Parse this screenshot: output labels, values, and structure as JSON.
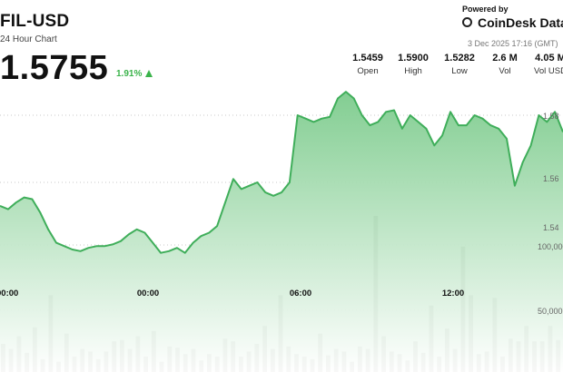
{
  "header": {
    "pair": "FIL-USD",
    "subtitle": "24 Hour Chart",
    "price": "1.5755",
    "change": "1.91%",
    "change_color": "#3ab34a"
  },
  "brand": {
    "powered_by": "Powered by",
    "name": "CoinDesk Data",
    "timestamp": "3 Dec 2025 17:16 (GMT)"
  },
  "stats": [
    {
      "value": "1.5459",
      "label": "Open"
    },
    {
      "value": "1.5900",
      "label": "High"
    },
    {
      "value": "1.5282",
      "label": "Low"
    },
    {
      "value": "2.6 M",
      "label": "Vol"
    },
    {
      "value": "4.05 M",
      "label": "Vol USD"
    }
  ],
  "colors": {
    "line": "#3fae5a",
    "area_top": "#7ccb8c",
    "area_bottom": "#ffffff",
    "volume_bar": "#6b6b64",
    "grid": "#c8c8c8"
  },
  "chart_data": {
    "type": "area",
    "x_tick_labels": [
      "00:00",
      "06:00",
      "12:00"
    ],
    "y_tick_labels": [
      "1.58",
      "1.56",
      "1.54"
    ],
    "volume_tick_labels": [
      "100,000",
      "50,000"
    ],
    "grid": true,
    "price_series": [
      1.553,
      1.552,
      1.554,
      1.5555,
      1.555,
      1.551,
      1.546,
      1.542,
      1.541,
      1.54,
      1.5395,
      1.5405,
      1.541,
      1.541,
      1.5415,
      1.5425,
      1.5445,
      1.546,
      1.545,
      1.542,
      1.539,
      1.5395,
      1.5405,
      1.539,
      1.542,
      1.544,
      1.545,
      1.547,
      1.554,
      1.561,
      1.558,
      1.559,
      1.56,
      1.557,
      1.556,
      1.557,
      1.56,
      1.58,
      1.579,
      1.578,
      1.579,
      1.5795,
      1.585,
      1.587,
      1.585,
      1.58,
      1.577,
      1.578,
      1.581,
      1.5815,
      1.576,
      1.58,
      1.578,
      1.576,
      1.571,
      1.574,
      1.581,
      1.577,
      1.577,
      1.58,
      1.579,
      1.577,
      1.576,
      1.573,
      1.559,
      1.566,
      1.571,
      1.58,
      1.578,
      1.581,
      1.575
    ],
    "volume_series": [
      22000,
      18000,
      28000,
      15000,
      35000,
      10000,
      60000,
      8000,
      30000,
      12000,
      18000,
      16000,
      10000,
      16000,
      24000,
      25000,
      18000,
      28000,
      12000,
      32000,
      8000,
      20000,
      19000,
      14000,
      18000,
      9000,
      14000,
      12000,
      26000,
      24000,
      12000,
      16000,
      22000,
      36000,
      18000,
      60000,
      20000,
      14000,
      12000,
      10000,
      30000,
      13000,
      18000,
      16000,
      8000,
      20000,
      18000,
      122000,
      28000,
      16000,
      14000,
      9000,
      24000,
      15000,
      52000,
      12000,
      34000,
      18000,
      98000,
      60000,
      14000,
      16000,
      58000,
      12000,
      26000,
      24000,
      36000,
      24000,
      24000,
      36000,
      25000
    ]
  }
}
